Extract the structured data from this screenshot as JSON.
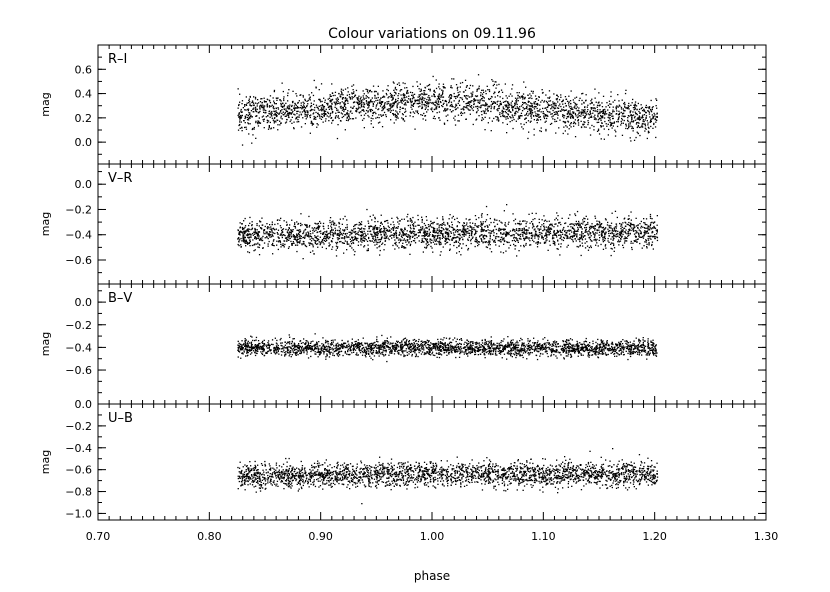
{
  "chart_data": {
    "type": "scatter",
    "title": "Colour variations on 09.11.96",
    "xlabel": "phase",
    "xlim": [
      0.7,
      1.3
    ],
    "xticks": [
      "0.70",
      "0.80",
      "0.90",
      "1.00",
      "1.10",
      "1.20",
      "1.30"
    ],
    "x_data_range": [
      0.825,
      1.202
    ],
    "panels": [
      {
        "name": "R–I",
        "ylabel": "mag",
        "ylim": [
          -0.18,
          0.8
        ],
        "yticks": [
          {
            "v": 0.6,
            "label": "0.6"
          },
          {
            "v": 0.4,
            "label": "0.4"
          },
          {
            "v": 0.2,
            "label": "0.2"
          },
          {
            "v": 0.0,
            "label": "0.0"
          }
        ],
        "trend": [
          [
            0.825,
            0.24
          ],
          [
            0.9,
            0.28
          ],
          [
            0.95,
            0.31
          ],
          [
            1.0,
            0.35
          ],
          [
            1.05,
            0.32
          ],
          [
            1.1,
            0.27
          ],
          [
            1.15,
            0.23
          ],
          [
            1.202,
            0.2
          ]
        ],
        "scatter_sigma": 0.075
      },
      {
        "name": "V–R",
        "ylabel": "mag",
        "ylim": [
          -0.79,
          0.16
        ],
        "yticks": [
          {
            "v": 0.0,
            "label": "0.0"
          },
          {
            "v": -0.2,
            "label": "−0.2"
          },
          {
            "v": -0.4,
            "label": "−0.4"
          },
          {
            "v": -0.6,
            "label": "−0.6"
          }
        ],
        "trend": [
          [
            0.825,
            -0.4
          ],
          [
            1.0,
            -0.39
          ],
          [
            1.202,
            -0.37
          ]
        ],
        "scatter_sigma": 0.06
      },
      {
        "name": "B–V",
        "ylabel": "mag",
        "ylim": [
          -0.9,
          0.16
        ],
        "yticks": [
          {
            "v": 0.0,
            "label": "0.0"
          },
          {
            "v": -0.2,
            "label": "−0.2"
          },
          {
            "v": -0.4,
            "label": "−0.4"
          },
          {
            "v": -0.6,
            "label": "−0.6"
          }
        ],
        "trend": [
          [
            0.825,
            -0.4
          ],
          [
            1.0,
            -0.4
          ],
          [
            1.202,
            -0.4
          ]
        ],
        "scatter_sigma": 0.035
      },
      {
        "name": "U–B",
        "ylabel": "mag",
        "ylim": [
          -1.06,
          0.0
        ],
        "yticks": [
          {
            "v": 0.0,
            "label": "0.0"
          },
          {
            "v": -0.2,
            "label": "−0.2"
          },
          {
            "v": -0.4,
            "label": "−0.4"
          },
          {
            "v": -0.6,
            "label": "−0.6"
          },
          {
            "v": -0.8,
            "label": "−0.8"
          },
          {
            "v": -1.0,
            "label": "−1.0"
          }
        ],
        "trend": [
          [
            0.825,
            -0.66
          ],
          [
            1.0,
            -0.63
          ],
          [
            1.202,
            -0.64
          ]
        ],
        "scatter_sigma": 0.055
      }
    ]
  }
}
